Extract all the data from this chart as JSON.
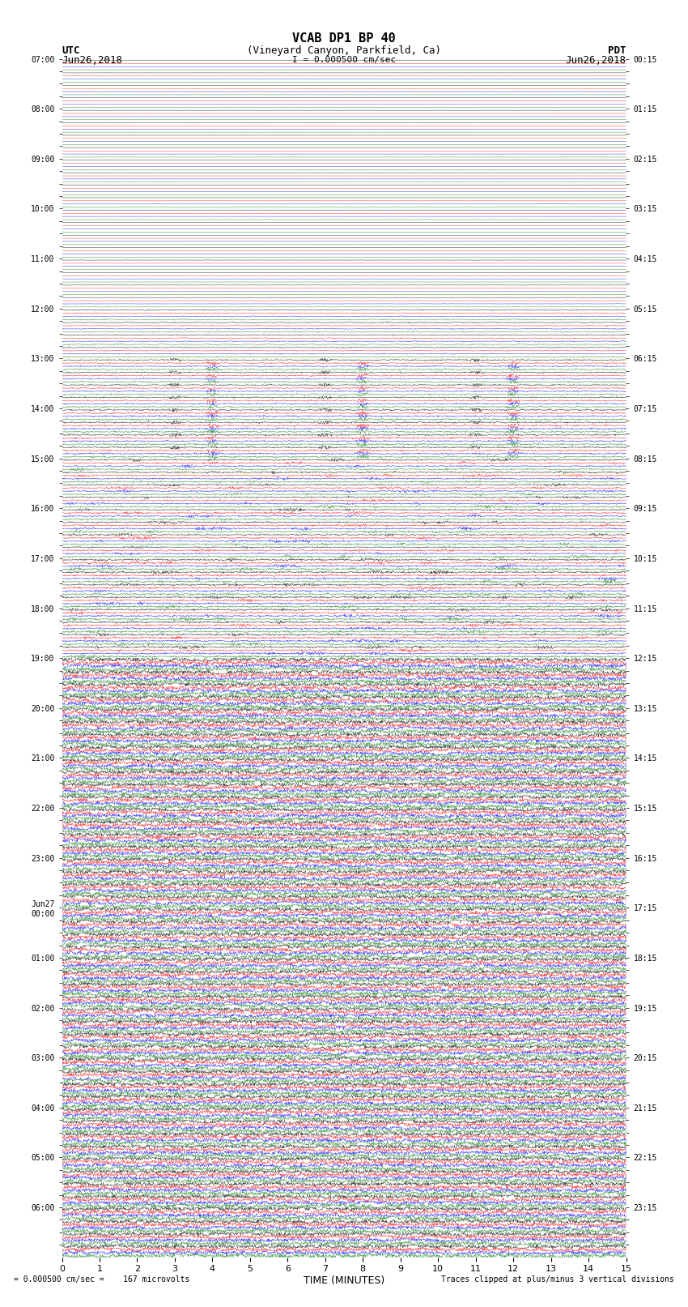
{
  "title_line1": "VCAB DP1 BP 40",
  "title_line2": "(Vineyard Canyon, Parkfield, Ca)",
  "scale_label": "I = 0.000500 cm/sec",
  "utc_label": "UTC",
  "utc_date": "Jun26,2018",
  "pdt_label": "PDT",
  "pdt_date": "Jun26,2018",
  "footer_left": "= 0.000500 cm/sec =    167 microvolts",
  "footer_right": "Traces clipped at plus/minus 3 vertical divisions",
  "xlabel": "TIME (MINUTES)",
  "xticks": [
    0,
    1,
    2,
    3,
    4,
    5,
    6,
    7,
    8,
    9,
    10,
    11,
    12,
    13,
    14,
    15
  ],
  "utc_times": [
    "07:00",
    "",
    "",
    "",
    "08:00",
    "",
    "",
    "",
    "09:00",
    "",
    "",
    "",
    "10:00",
    "",
    "",
    "",
    "11:00",
    "",
    "",
    "",
    "12:00",
    "",
    "",
    "",
    "13:00",
    "",
    "",
    "",
    "14:00",
    "",
    "",
    "",
    "15:00",
    "",
    "",
    "",
    "16:00",
    "",
    "",
    "",
    "17:00",
    "",
    "",
    "",
    "18:00",
    "",
    "",
    "",
    "19:00",
    "",
    "",
    "",
    "20:00",
    "",
    "",
    "",
    "21:00",
    "",
    "",
    "",
    "22:00",
    "",
    "",
    "",
    "23:00",
    "",
    "",
    "",
    "Jun27\n00:00",
    "",
    "",
    "",
    "01:00",
    "",
    "",
    "",
    "02:00",
    "",
    "",
    "",
    "03:00",
    "",
    "",
    "",
    "04:00",
    "",
    "",
    "",
    "05:00",
    "",
    "",
    "",
    "06:00",
    "",
    "",
    ""
  ],
  "pdt_times": [
    "00:15",
    "",
    "",
    "",
    "01:15",
    "",
    "",
    "",
    "02:15",
    "",
    "",
    "",
    "03:15",
    "",
    "",
    "",
    "04:15",
    "",
    "",
    "",
    "05:15",
    "",
    "",
    "",
    "06:15",
    "",
    "",
    "",
    "07:15",
    "",
    "",
    "",
    "08:15",
    "",
    "",
    "",
    "09:15",
    "",
    "",
    "",
    "10:15",
    "",
    "",
    "",
    "11:15",
    "",
    "",
    "",
    "12:15",
    "",
    "",
    "",
    "13:15",
    "",
    "",
    "",
    "14:15",
    "",
    "",
    "",
    "15:15",
    "",
    "",
    "",
    "16:15",
    "",
    "",
    "",
    "17:15",
    "",
    "",
    "",
    "18:15",
    "",
    "",
    "",
    "19:15",
    "",
    "",
    "",
    "20:15",
    "",
    "",
    "",
    "21:15",
    "",
    "",
    "",
    "22:15",
    "",
    "",
    "",
    "23:15",
    "",
    "",
    ""
  ],
  "colors": [
    "black",
    "red",
    "blue",
    "green"
  ],
  "background_color": "white",
  "plot_bg_color": "white",
  "n_rows": 96,
  "n_channels": 4,
  "minutes": 15,
  "samples_per_minute": 100,
  "amplitude_early": 0.1,
  "amplitude_mid": 2.5,
  "amplitude_late": 3.0,
  "noise_seed": 42
}
